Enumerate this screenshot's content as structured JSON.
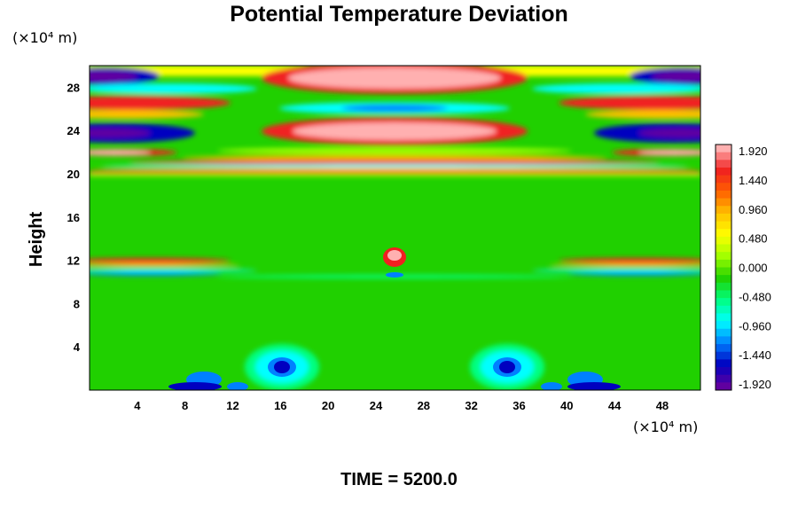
{
  "chart_data": {
    "type": "heatmap",
    "title": "Potential Temperature Deviation",
    "ylabel": "Height",
    "x_unit_label": "(×10⁴ m)",
    "y_unit_label": "(×10⁴ m)",
    "x_ticks": [
      "4",
      "8",
      "12",
      "16",
      "20",
      "24",
      "28",
      "32",
      "36",
      "40",
      "44",
      "48"
    ],
    "y_ticks": [
      "4",
      "8",
      "12",
      "16",
      "20",
      "24",
      "28"
    ],
    "xlim": [
      0,
      51.2
    ],
    "ylim": [
      0,
      30
    ],
    "colorbar": {
      "labels": [
        "1.920",
        "1.440",
        "0.960",
        "0.480",
        "0.000",
        "-0.480",
        "-0.960",
        "-1.440",
        "-1.920"
      ],
      "range": [
        -1.92,
        1.92
      ],
      "colors": [
        "#ffb0b0",
        "#f02020",
        "#ff6000",
        "#ffc000",
        "#ffff00",
        "#a0ff00",
        "#20d000",
        "#00ff80",
        "#00ffff",
        "#0080ff",
        "#0000c0",
        "#6000a0"
      ]
    },
    "time_label": "TIME = 5200.0"
  }
}
